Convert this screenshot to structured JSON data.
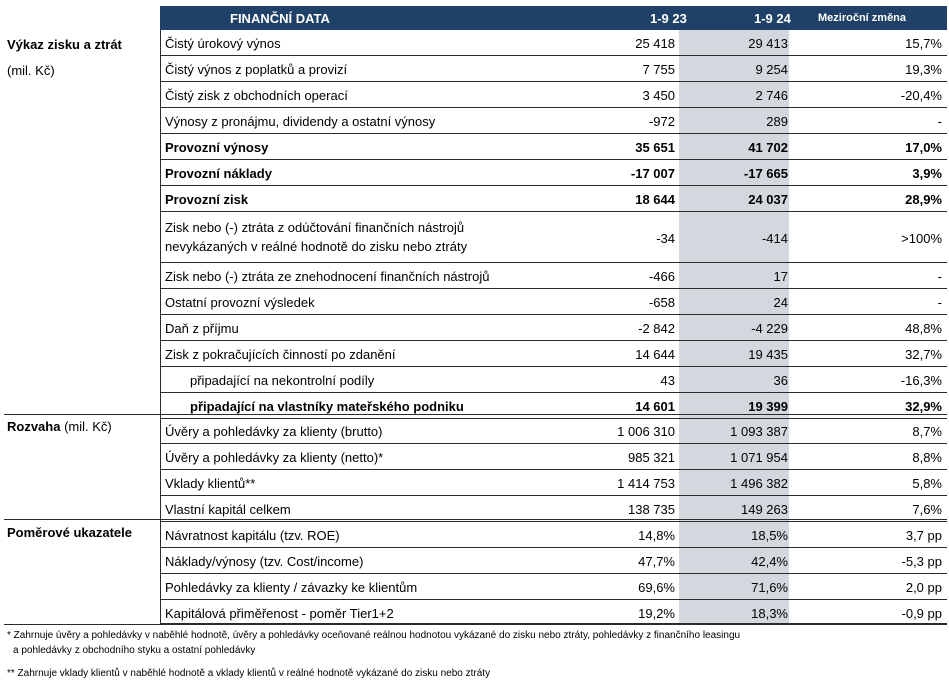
{
  "header": {
    "title": "FINANČNÍ DATA",
    "col1": "1-9 23",
    "col2": "1-9 24",
    "col3": "Meziroční změna"
  },
  "sections": {
    "vykaz_title": "Výkaz zisku a ztrát",
    "vykaz_unit": "(mil. Kč)",
    "rozvaha_title": "Rozvaha",
    "rozvaha_unit": "(mil. Kč)",
    "pomer_title": "Poměrové ukazatele"
  },
  "rows": [
    {
      "label": "Čistý úrokový výnos",
      "v1": "25 418",
      "v2": "29 413",
      "v3": "15,7%",
      "bold": false
    },
    {
      "label": "Čistý výnos z poplatků a provizí",
      "v1": "7 755",
      "v2": "9 254",
      "v3": "19,3%",
      "bold": false
    },
    {
      "label": "Čistý zisk z obchodních operací",
      "v1": "3 450",
      "v2": "2 746",
      "v3": "-20,4%",
      "bold": false
    },
    {
      "label": "Výnosy z pronájmu, dividendy a ostatní výnosy",
      "v1": "-972",
      "v2": "289",
      "v3": "-",
      "bold": false
    },
    {
      "label": "Provozní výnosy",
      "v1": "35 651",
      "v2": "41 702",
      "v3": "17,0%",
      "bold": true
    },
    {
      "label": "Provozní náklady",
      "v1": "-17 007",
      "v2": "-17 665",
      "v3": "3,9%",
      "bold": true
    },
    {
      "label": "Provozní zisk",
      "v1": "18 644",
      "v2": "24 037",
      "v3": "28,9%",
      "bold": true
    },
    {
      "label": "Zisk nebo (-) ztráta z odúčtování finančních nástrojů",
      "label2": "nevykázaných v reálné hodnotě do zisku nebo ztráty",
      "v1": "-34",
      "v2": "-414",
      "v3": ">100%",
      "bold": false
    },
    {
      "label": "Zisk nebo (-) ztráta ze znehodnocení finančních nástrojů",
      "v1": "-466",
      "v2": "17",
      "v3": "-",
      "bold": false
    },
    {
      "label": "Ostatní provozní výsledek",
      "v1": "-658",
      "v2": "24",
      "v3": "-",
      "bold": false
    },
    {
      "label": "Daň z příjmu",
      "v1": "-2 842",
      "v2": "-4 229",
      "v3": "48,8%",
      "bold": false
    },
    {
      "label": "Zisk z pokračujících činností po zdanění",
      "v1": "14 644",
      "v2": "19 435",
      "v3": "32,7%",
      "bold": false
    },
    {
      "label": "připadající na nekontrolní podíly",
      "v1": "43",
      "v2": "36",
      "v3": "-16,3%",
      "bold": false
    },
    {
      "label": "připadající na vlastníky mateřského podniku",
      "v1": "14 601",
      "v2": "19 399",
      "v3": "32,9%",
      "bold": true
    },
    {
      "label": "Úvěry a pohledávky za klienty (brutto)",
      "v1": "1 006 310",
      "v2": "1 093 387",
      "v3": "8,7%",
      "bold": false
    },
    {
      "label": "Úvěry a pohledávky za klienty (netto)*",
      "v1": "985 321",
      "v2": "1 071 954",
      "v3": "8,8%",
      "bold": false
    },
    {
      "label": "Vklady klientů**",
      "v1": "1 414 753",
      "v2": "1 496 382",
      "v3": "5,8%",
      "bold": false
    },
    {
      "label": "Vlastní kapitál celkem",
      "v1": "138 735",
      "v2": "149 263",
      "v3": "7,6%",
      "bold": false
    },
    {
      "label": "Návratnost kapitálu (tzv. ROE)",
      "v1": "14,8%",
      "v2": "18,5%",
      "v3": "3,7 pp",
      "bold": false
    },
    {
      "label": "Náklady/výnosy (tzv. Cost/income)",
      "v1": "47,7%",
      "v2": "42,4%",
      "v3": "-5,3 pp",
      "bold": false
    },
    {
      "label": "Pohledávky za klienty / závazky ke klientům",
      "v1": "69,6%",
      "v2": "71,6%",
      "v3": "2,0 pp",
      "bold": false
    },
    {
      "label": "Kapitálová přiměřenost - poměr Tier1+2",
      "v1": "19,2%",
      "v2": "18,3%",
      "v3": "-0,9 pp",
      "bold": false
    }
  ],
  "footnotes": {
    "f1a": "* Zahrnuje úvěry a pohledávky v naběhlé hodnotě, úvěry a pohledávky oceňované reálnou hodnotou vykázané do zisku nebo ztráty, pohledávky z finančního leasingu",
    "f1b": "a pohledávky z obchodního styku a ostatní pohledávky",
    "f2": "** Zahrnuje vklady klientů v naběhlé hodnotě a vklady klientů v reálné hodnotě vykázané do zisku nebo ztráty"
  }
}
